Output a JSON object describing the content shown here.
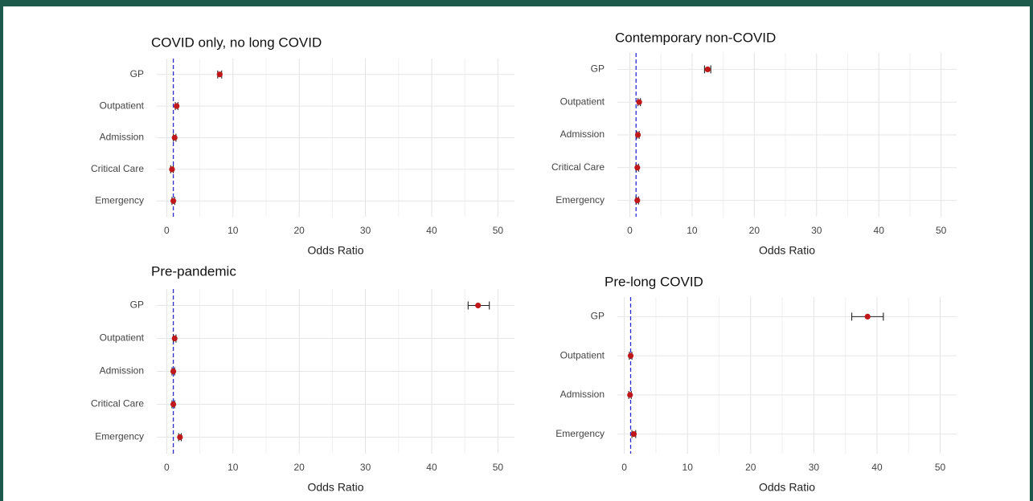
{
  "chart_data": [
    {
      "type": "forest",
      "title": "COVID only, no long COVID",
      "xlabel": "Odds Ratio",
      "categories": [
        "GP",
        "Outpatient",
        "Admission",
        "Critical Care",
        "Emergency"
      ],
      "values": [
        8,
        1.5,
        1.2,
        0.8,
        1.0
      ],
      "ci_lower": [
        7.7,
        1.3,
        1.0,
        0.6,
        0.8
      ],
      "ci_upper": [
        8.3,
        1.7,
        1.4,
        1.0,
        1.2
      ],
      "xlim": [
        -1.5,
        52.5
      ],
      "xticks": [
        0,
        10,
        20,
        30,
        40,
        50
      ],
      "reference_line": 1,
      "color": "#c0171b",
      "reference_color": "#2b2bd6",
      "grid": true
    },
    {
      "type": "forest",
      "title": "Contemporary non-COVID",
      "xlabel": "Odds Ratio",
      "categories": [
        "GP",
        "Outpatient",
        "Admission",
        "Critical Care",
        "Emergency"
      ],
      "values": [
        12.5,
        1.5,
        1.3,
        1.2,
        1.2
      ],
      "ci_lower": [
        12.0,
        1.3,
        1.1,
        1.0,
        1.0
      ],
      "ci_upper": [
        13.0,
        1.7,
        1.5,
        1.4,
        1.4
      ],
      "xlim": [
        -2,
        52.5
      ],
      "xticks": [
        0,
        10,
        20,
        30,
        40,
        50
      ],
      "reference_line": 1,
      "color": "#c0171b",
      "reference_color": "#2b2bd6",
      "grid": true
    },
    {
      "type": "forest",
      "title": "Pre-pandemic",
      "xlabel": "Odds Ratio",
      "categories": [
        "GP",
        "Outpatient",
        "Admission",
        "Critical Care",
        "Emergency"
      ],
      "values": [
        47,
        1.2,
        1.0,
        1.0,
        2.0
      ],
      "ci_lower": [
        45.5,
        1.0,
        0.8,
        0.8,
        1.8
      ],
      "ci_upper": [
        48.7,
        1.4,
        1.2,
        1.2,
        2.2
      ],
      "xlim": [
        -1.5,
        52.5
      ],
      "xticks": [
        0,
        10,
        20,
        30,
        40,
        50
      ],
      "reference_line": 1,
      "color": "#c0171b",
      "reference_color": "#2b2bd6",
      "grid": true
    },
    {
      "type": "forest",
      "title": "Pre-long COVID",
      "xlabel": "Odds Ratio",
      "categories": [
        "GP",
        "Outpatient",
        "Admission",
        "Emergency"
      ],
      "values": [
        38.5,
        1.0,
        0.9,
        1.5
      ],
      "ci_lower": [
        36,
        0.8,
        0.7,
        1.2
      ],
      "ci_upper": [
        41,
        1.2,
        1.1,
        1.8
      ],
      "xlim": [
        -1.1,
        52.6
      ],
      "xticks": [
        0,
        10,
        20,
        30,
        40,
        50
      ],
      "reference_line": 1,
      "color": "#c0171b",
      "reference_color": "#2b2bd6",
      "grid": true
    }
  ]
}
